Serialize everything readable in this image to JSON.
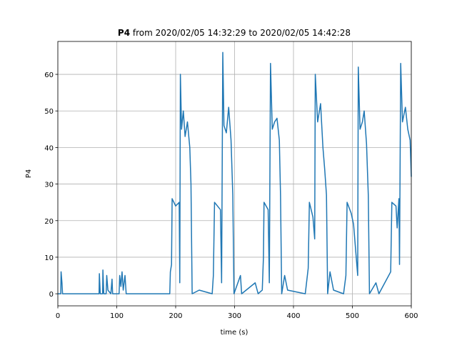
{
  "chart_data": {
    "type": "line",
    "title_label": "P4",
    "title": "from 2020/02/05 14:32:29 to 2020/02/05 14:42:28",
    "x_label": "time (s)",
    "y_label": "P4",
    "x": [
      0,
      5,
      5.5,
      7,
      8,
      70,
      70.5,
      72,
      76,
      76.5,
      78,
      82,
      83,
      85,
      90,
      92,
      93,
      104,
      105,
      107,
      109,
      111,
      114,
      116,
      190,
      191,
      193,
      194,
      200,
      206,
      207,
      208,
      210,
      213,
      216,
      220,
      224,
      226,
      228,
      240,
      262,
      264,
      266,
      276,
      278,
      280,
      282,
      286,
      290,
      294,
      297,
      299,
      310,
      312,
      335,
      340,
      347,
      349,
      350,
      357,
      359,
      361,
      364,
      368,
      372,
      376,
      378,
      380,
      385,
      390,
      420,
      425,
      427,
      433,
      436,
      437,
      441,
      446,
      450,
      453,
      456,
      458,
      462,
      468,
      485,
      489,
      491,
      498,
      502,
      509,
      510,
      513,
      517,
      520,
      524,
      527,
      529,
      540,
      545,
      565,
      567,
      574,
      576,
      579,
      580,
      582,
      585,
      590,
      594,
      598,
      600
    ],
    "series": [
      {
        "color": "#1f77b4",
        "values": [
          0,
          0,
          6,
          3,
          0,
          0,
          5.5,
          0,
          0,
          6.5,
          0,
          0,
          5,
          1,
          0,
          4,
          0,
          0,
          5,
          2,
          6,
          1,
          5,
          0,
          0,
          6,
          8,
          26,
          24,
          25,
          3,
          60,
          45,
          50,
          43,
          47,
          40,
          30,
          0,
          1,
          0,
          5,
          25,
          23,
          3,
          66,
          46,
          44,
          51,
          42,
          27,
          0,
          5,
          0,
          3,
          0,
          1,
          10,
          25,
          23,
          3,
          63,
          45,
          47,
          48,
          42,
          27,
          0,
          5,
          1,
          0,
          7,
          25,
          21,
          15,
          60,
          47,
          52,
          40,
          34,
          27,
          0,
          6,
          1,
          0,
          5,
          25,
          22,
          19,
          5,
          62,
          45,
          47,
          50,
          41,
          27,
          0,
          3,
          0,
          6,
          25,
          24,
          18,
          26,
          8,
          63,
          47,
          51,
          45,
          42,
          32
        ]
      }
    ],
    "xlim": [
      0,
      600
    ],
    "xticks": [
      0,
      100,
      200,
      300,
      400,
      500,
      600
    ],
    "ylim": [
      -3.3,
      69
    ],
    "yticks": [
      0,
      10,
      20,
      30,
      40,
      50,
      60
    ],
    "grid": true
  }
}
